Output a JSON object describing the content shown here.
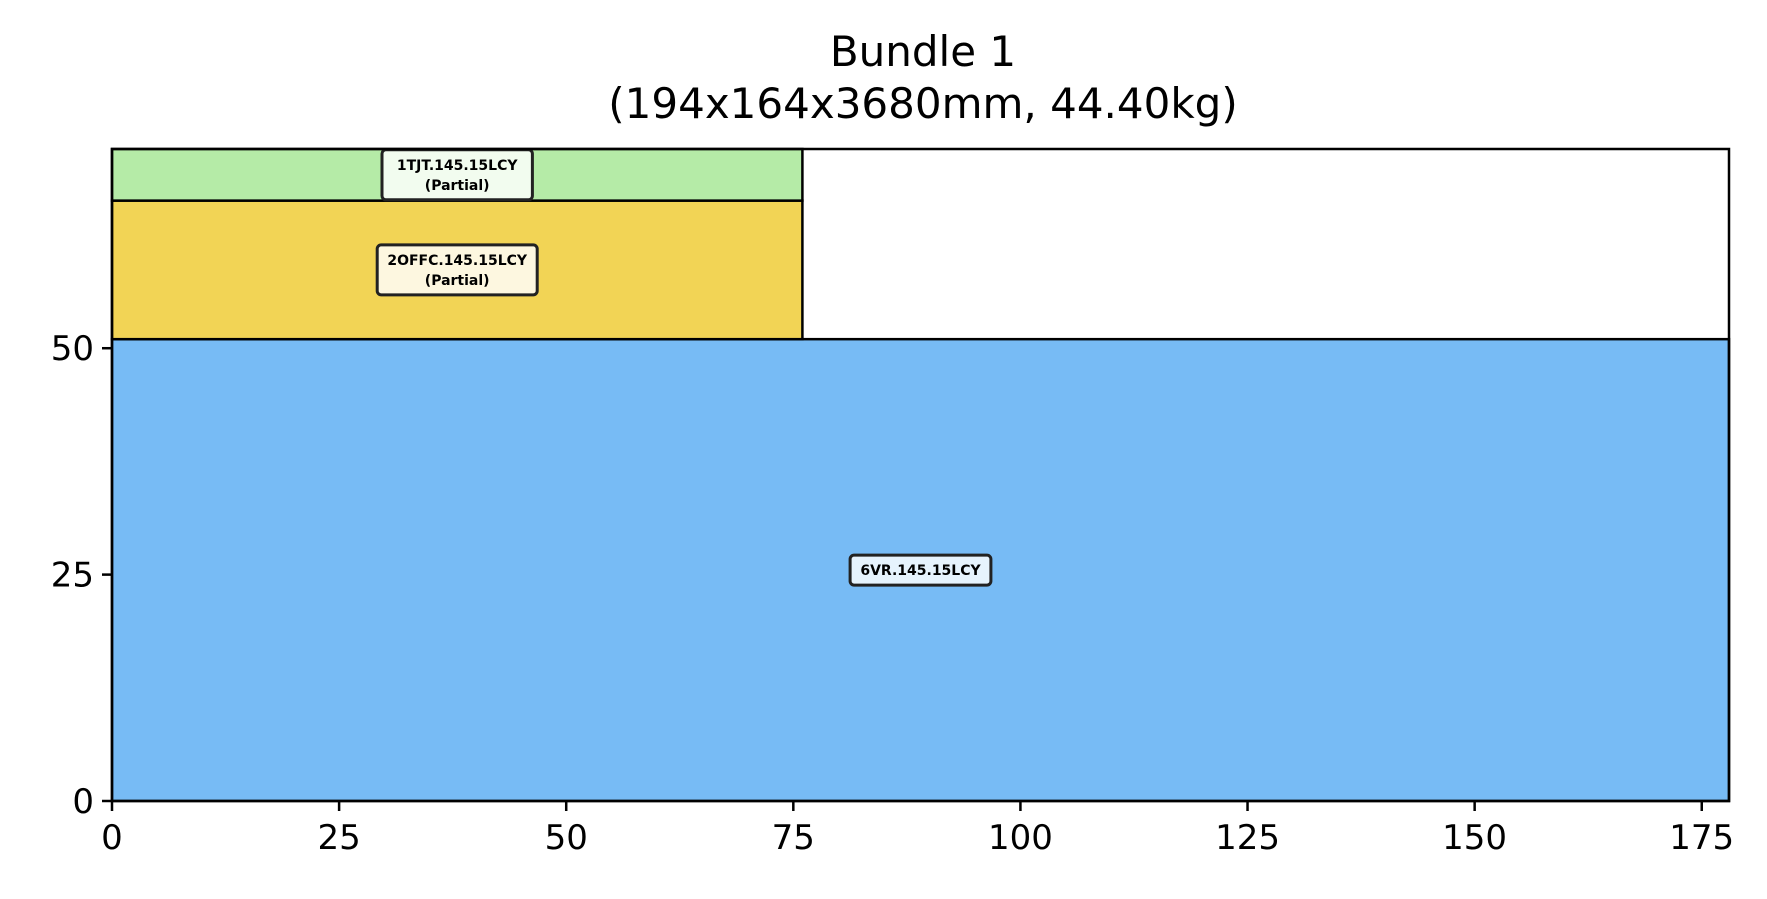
{
  "chart_data": {
    "type": "rectangles",
    "title": "Bundle 1",
    "subtitle": "(194x164x3680mm, 44.40kg)",
    "xlim": [
      0,
      178
    ],
    "ylim": [
      0,
      72
    ],
    "xticks": [
      0,
      25,
      50,
      75,
      100,
      125,
      150,
      175
    ],
    "yticks": [
      0,
      25,
      50
    ],
    "grid": false,
    "items": [
      {
        "label": "6VR.145.15LCY",
        "x": 0,
        "y": 0,
        "width": 178,
        "height": 51,
        "color": "#77bbf5"
      },
      {
        "label": "2OFFC.145.15LCY",
        "sublabel": "(Partial)",
        "x": 0,
        "y": 51,
        "width": 76,
        "height": 15.3,
        "color": "#f2d455"
      },
      {
        "label": "1TJT.145.15LCY",
        "sublabel": "(Partial)",
        "x": 0,
        "y": 66.3,
        "width": 76,
        "height": 5.7,
        "color": "#b5eba7"
      }
    ]
  }
}
